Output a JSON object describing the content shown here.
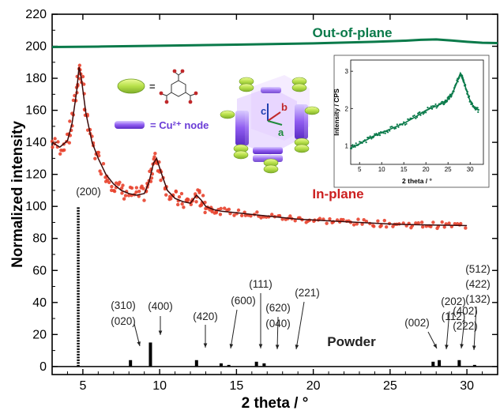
{
  "chart_data": {
    "type": "line",
    "title": "",
    "xlabel": "2 theta / °",
    "ylabel": "Normalized intensity",
    "xlim": [
      3,
      32
    ],
    "ylim": [
      -5,
      220
    ],
    "xticks": [
      5,
      10,
      15,
      20,
      25,
      30
    ],
    "yticks": [
      0,
      20,
      40,
      60,
      80,
      100,
      120,
      140,
      160,
      180,
      200,
      220
    ],
    "series": [
      {
        "name": "Out-of-plane",
        "color": "#0a7a4a",
        "style": "line",
        "x": [
          3,
          6,
          10,
          15,
          20,
          24,
          26,
          27,
          28,
          29,
          30,
          31,
          32
        ],
        "y": [
          199.5,
          199.8,
          200.3,
          201,
          201.8,
          202.8,
          203.5,
          204,
          204.3,
          203.6,
          202.8,
          202.2,
          202
        ]
      },
      {
        "name": "In-plane",
        "color": "#e8432e",
        "style": "scatter+fit",
        "x": [
          3,
          3.5,
          4,
          4.3,
          4.6,
          4.75,
          4.9,
          5.2,
          5.6,
          6.0,
          6.5,
          7,
          7.5,
          8,
          8.5,
          9,
          9.3,
          9.6,
          9.8,
          10.1,
          10.5,
          11,
          11.5,
          12,
          12.4,
          12.7,
          13,
          13.5,
          14,
          15,
          16,
          17,
          18,
          19,
          20,
          21,
          22,
          23,
          24,
          25,
          26,
          27,
          28,
          29,
          30
        ],
        "y": [
          140,
          137,
          141,
          152,
          172,
          187,
          180,
          158,
          140,
          130,
          120,
          114,
          110,
          108,
          107,
          108,
          115,
          127,
          130,
          121,
          110,
          105,
          103,
          102,
          107,
          104,
          100,
          98,
          97,
          96,
          95,
          94,
          93,
          92,
          91.5,
          91,
          90.5,
          90,
          89.5,
          89,
          88.7,
          88.5,
          88.3,
          88.2,
          88
        ]
      },
      {
        "name": "Powder",
        "color": "#000000",
        "style": "sticks",
        "x": [
          4.7,
          8.1,
          9.4,
          12.4,
          14.0,
          14.5,
          16.3,
          16.8,
          27.8,
          28.2,
          29.5,
          30.5
        ],
        "y": [
          100,
          4,
          15,
          4,
          2,
          1,
          3,
          2,
          3,
          4,
          4,
          1
        ]
      }
    ],
    "peak_labels": [
      {
        "text": "(200)",
        "x": 4.7
      },
      {
        "text": "(310)",
        "x": 8.1
      },
      {
        "text": "(020)",
        "x": 8.1
      },
      {
        "text": "(400)",
        "x": 9.4
      },
      {
        "text": "(420)",
        "x": 12.4
      },
      {
        "text": "(600)",
        "x": 14.0
      },
      {
        "text": "(111)",
        "x": 14.5
      },
      {
        "text": "(620)",
        "x": 16.3
      },
      {
        "text": "(040)",
        "x": 16.3
      },
      {
        "text": "(221)",
        "x": 16.8
      },
      {
        "text": "(002)",
        "x": 27.8
      },
      {
        "text": "(202)",
        "x": 28.2
      },
      {
        "text": "(112)",
        "x": 28.2
      },
      {
        "text": "(402)",
        "x": 29.5
      },
      {
        "text": "(222)",
        "x": 29.5
      },
      {
        "text": "(512)",
        "x": 30.5
      },
      {
        "text": "(422)",
        "x": 30.5
      },
      {
        "text": "(132)",
        "x": 30.5
      }
    ],
    "legend": {
      "entries": [
        {
          "symbol": "green-ellipse",
          "text": "="
        },
        {
          "symbol": "purple-bar",
          "text": "= Cu²⁺ node"
        }
      ]
    },
    "structure_axes": [
      "c",
      "b",
      "a"
    ],
    "inset": {
      "type": "line",
      "xlabel": "2 theta / °",
      "ylabel": "Intensity / CPS",
      "xlim": [
        3,
        33
      ],
      "ylim": [
        0.5,
        3.3
      ],
      "xticks": [
        5,
        10,
        15,
        20,
        25,
        30
      ],
      "yticks": [
        1,
        2,
        3
      ],
      "color": "#0a7a4a",
      "x": [
        3,
        5,
        8,
        10,
        12,
        15,
        18,
        20,
        22,
        24,
        25,
        26,
        27,
        27.8,
        28.3,
        29,
        30,
        31,
        32
      ],
      "y": [
        0.95,
        1.05,
        1.25,
        1.35,
        1.45,
        1.6,
        1.8,
        1.95,
        2.05,
        2.15,
        2.25,
        2.4,
        2.7,
        2.95,
        2.85,
        2.55,
        2.2,
        2.0,
        1.95
      ]
    }
  }
}
